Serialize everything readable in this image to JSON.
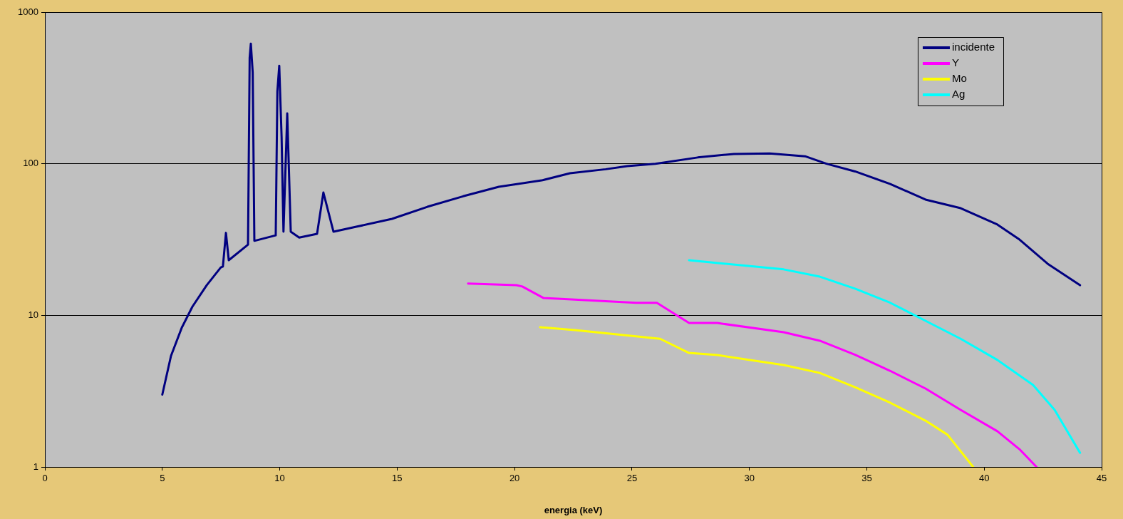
{
  "chart_data": {
    "type": "line",
    "xlabel": "energia (keV)",
    "log": "y",
    "grid": "y",
    "legend": "top right",
    "marker": "none",
    "line_style": "solid",
    "xlim": [
      0,
      45
    ],
    "xticks": [
      0,
      5,
      10,
      15,
      20,
      25,
      30,
      35,
      40,
      45
    ],
    "ylim": [
      1,
      1000
    ],
    "yticks": [
      1,
      10,
      100,
      1000
    ],
    "series": [
      {
        "name": "incidente",
        "color": "#000080",
        "x": [
          5.0,
          5.37,
          5.83,
          6.28,
          6.89,
          7.49,
          7.58,
          7.71,
          7.83,
          8.65,
          8.72,
          8.77,
          8.85,
          8.92,
          9.83,
          9.9,
          9.98,
          10.08,
          10.16,
          10.32,
          10.47,
          10.83,
          11.59,
          11.86,
          12.29,
          13.26,
          14.78,
          16.29,
          17.81,
          19.33,
          21.15,
          22.36,
          23.88,
          24.8,
          26.0,
          27.8,
          29.34,
          30.86,
          32.37,
          33.28,
          34.5,
          36.0,
          37.5,
          39.0,
          40.56,
          41.47,
          42.7,
          44.08
        ],
        "values": [
          3,
          5.4,
          8.3,
          11.4,
          15.8,
          20.7,
          21,
          35,
          23.1,
          29.3,
          500,
          620,
          400,
          31,
          33.7,
          300,
          443,
          150,
          35.6,
          215,
          35.6,
          32.6,
          34.5,
          64.6,
          35.6,
          38.4,
          43.3,
          52,
          61,
          70.5,
          77.6,
          86.5,
          92,
          96.4,
          100,
          110,
          116,
          117,
          112,
          100,
          89,
          73.5,
          58,
          50.9,
          39.7,
          31.9,
          21.9,
          15.8
        ]
      },
      {
        "name": "Y",
        "color": "#ff00ff",
        "x": [
          18.02,
          20.08,
          20.33,
          21.24,
          22.57,
          25.18,
          26.06,
          27.43,
          28.64,
          31.46,
          33.0,
          34.5,
          36.0,
          37.5,
          39.0,
          40.56,
          41.5,
          42.23
        ],
        "values": [
          16.2,
          15.8,
          15.5,
          13.0,
          12.7,
          12.1,
          12.1,
          8.9,
          8.9,
          7.74,
          6.8,
          5.5,
          4.3,
          3.29,
          2.38,
          1.72,
          1.31,
          1.0
        ]
      },
      {
        "name": "Mo",
        "color": "#ffff00",
        "x": [
          21.09,
          22.57,
          25.24,
          26.2,
          27.43,
          28.64,
          31.46,
          33.0,
          34.5,
          36.0,
          37.5,
          38.44,
          39.53
        ],
        "values": [
          8.35,
          8.0,
          7.25,
          7.0,
          5.65,
          5.47,
          4.7,
          4.17,
          3.36,
          2.65,
          2.02,
          1.63,
          1.0
        ]
      },
      {
        "name": "Ag",
        "color": "#00ffff",
        "x": [
          27.43,
          31.46,
          33.0,
          34.5,
          36.0,
          37.5,
          39.0,
          40.56,
          42.08,
          43.0,
          44.08
        ],
        "values": [
          23.1,
          20.1,
          18.0,
          15.0,
          12.1,
          9.2,
          7.0,
          5.08,
          3.47,
          2.38,
          1.24
        ]
      }
    ]
  }
}
